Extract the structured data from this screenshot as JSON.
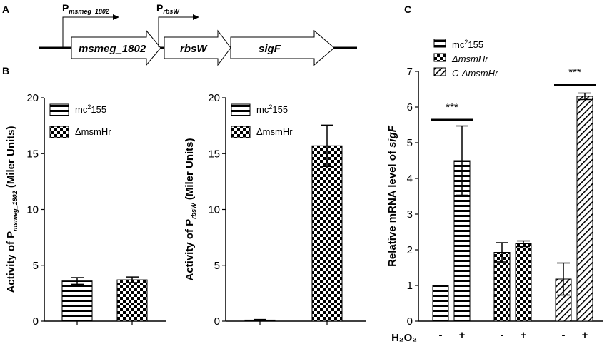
{
  "panels": {
    "a": "A",
    "b": "B",
    "c": "C"
  },
  "operon": {
    "promoter1_main": "P",
    "promoter1_sub": "msmeg_1802",
    "promoter2_main": "P",
    "promoter2_sub": "rbsW",
    "genes": [
      "msmeg_1802",
      "rbsW",
      "sigF"
    ]
  },
  "chart_data": [
    {
      "type": "bar",
      "panel": "B-left",
      "ylabel_parts": [
        "Activity of P",
        "msmeg_1802",
        " (Miler Units)"
      ],
      "ylim": [
        0,
        20
      ],
      "yticks": [
        "0",
        "5",
        "10",
        "15",
        "20"
      ],
      "series": [
        {
          "name": "mc²155",
          "values": [
            3.6
          ],
          "errors": [
            0.3
          ],
          "pattern": "hlines"
        },
        {
          "name": "ΔmsmHr",
          "values": [
            3.7
          ],
          "errors": [
            0.25
          ],
          "pattern": "checker"
        }
      ],
      "legend": [
        {
          "base": "mc",
          "sup": "2",
          "rest": "155"
        },
        {
          "base": "ΔmsmHr",
          "sup": "",
          "rest": ""
        }
      ]
    },
    {
      "type": "bar",
      "panel": "B-right",
      "ylabel_parts": [
        "Activity of P",
        "rbsW",
        " (Miler Units)"
      ],
      "ylim": [
        0,
        20
      ],
      "yticks": [
        "0",
        "5",
        "10",
        "15",
        "20"
      ],
      "series": [
        {
          "name": "mc²155",
          "values": [
            0.1
          ],
          "errors": [
            0.05
          ],
          "pattern": "hlines"
        },
        {
          "name": "ΔmsmHr",
          "values": [
            15.7
          ],
          "errors": [
            1.85
          ],
          "pattern": "checker"
        }
      ],
      "legend": [
        {
          "base": "mc",
          "sup": "2",
          "rest": "155"
        },
        {
          "base": "ΔmsmHr",
          "sup": "",
          "rest": ""
        }
      ]
    },
    {
      "type": "bar",
      "panel": "C",
      "ylabel_parts": [
        "Relative mRNA level of ",
        "sigF"
      ],
      "ylim": [
        0,
        7
      ],
      "yticks": [
        "0",
        "1",
        "2",
        "3",
        "4",
        "5",
        "6",
        "7"
      ],
      "xlabel": "H₂O₂",
      "groups": [
        {
          "name": "mc²155",
          "pattern": "hlines",
          "values": [
            1.0,
            4.5
          ],
          "errors": [
            0,
            0.97
          ],
          "treatment": [
            "-",
            "+"
          ],
          "signif": "***"
        },
        {
          "name": "ΔmsmHr",
          "pattern": "checker",
          "values": [
            1.93,
            2.17
          ],
          "errors": [
            0.27,
            0.08
          ],
          "treatment": [
            "-",
            "+"
          ],
          "signif": ""
        },
        {
          "name": "C-ΔmsmHr",
          "pattern": "diag",
          "values": [
            1.18,
            6.3
          ],
          "errors": [
            0.45,
            0.09
          ],
          "treatment": [
            "-",
            "+"
          ],
          "signif": "***"
        }
      ],
      "legend": [
        {
          "base": "mc",
          "sup": "2",
          "rest": "155",
          "italic": false
        },
        {
          "base": "ΔmsmHr",
          "sup": "",
          "rest": "",
          "italic": true
        },
        {
          "base": "C-ΔmsmHr",
          "sup": "",
          "rest": "",
          "italic": true
        }
      ]
    }
  ]
}
